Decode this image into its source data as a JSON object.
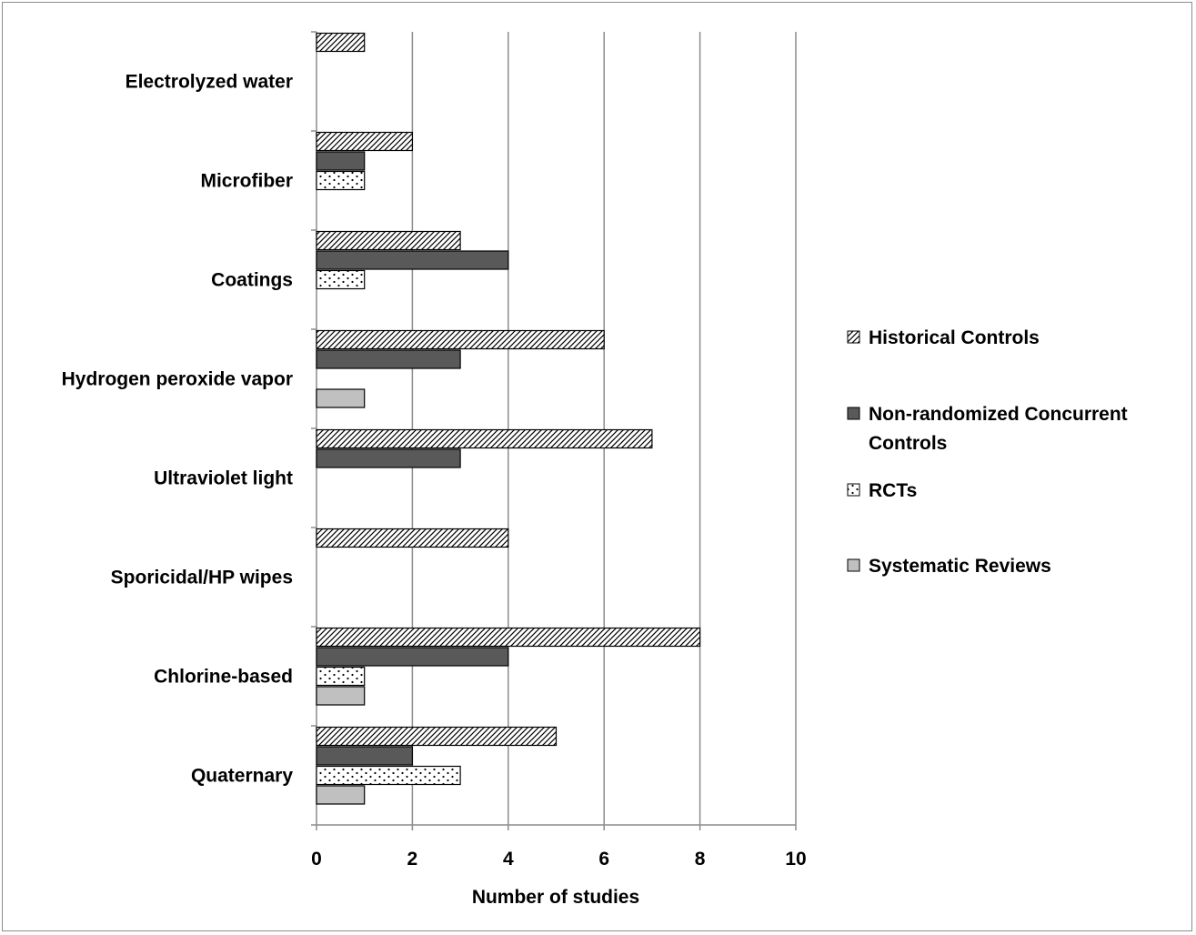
{
  "chart_data": {
    "type": "bar",
    "orientation": "horizontal",
    "categories": [
      "Quaternary",
      "Chlorine-based",
      "Sporicidal/HP wipes",
      "Ultraviolet light",
      "Hydrogen peroxide vapor",
      "Coatings",
      "Microfiber",
      "Electrolyzed water"
    ],
    "series": [
      {
        "name": "Historical Controls",
        "pattern": "diagonal-hatch",
        "color": "#ffffff",
        "values": [
          5,
          8,
          4,
          7,
          6,
          3,
          2,
          1
        ]
      },
      {
        "name": "Non-randomized Concurrent Controls",
        "pattern": "solid",
        "color": "#595959",
        "values": [
          2,
          4,
          0,
          3,
          3,
          4,
          1,
          0
        ]
      },
      {
        "name": "RCTs",
        "pattern": "dots",
        "color": "#ffffff",
        "values": [
          3,
          1,
          0,
          0,
          0,
          1,
          1,
          0
        ]
      },
      {
        "name": "Systematic Reviews",
        "pattern": "solid",
        "color": "#c0c0c0",
        "values": [
          1,
          1,
          0,
          0,
          1,
          0,
          0,
          0
        ]
      }
    ],
    "xlabel": "Number of studies",
    "ylabel": "",
    "xlim": [
      0,
      10
    ],
    "xticks": [
      "0",
      "2",
      "4",
      "6",
      "8",
      "10"
    ],
    "grid": "vertical",
    "legend_position": "right"
  }
}
